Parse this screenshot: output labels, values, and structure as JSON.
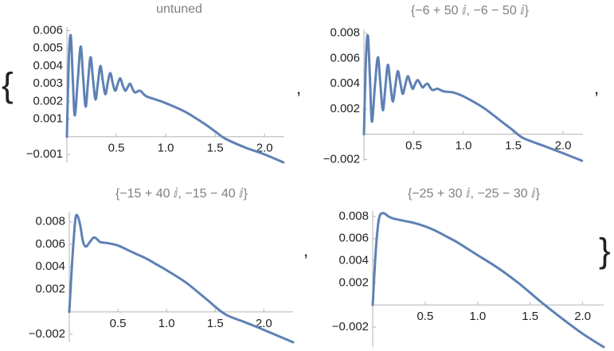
{
  "open_brace": "{",
  "close_brace": "}",
  "separators": [
    ",",
    ",",
    ","
  ],
  "chart_data": [
    {
      "type": "line",
      "title": "untuned",
      "color": "#5e81b5",
      "xlim": [
        0,
        2.2
      ],
      "ylim": [
        -0.00145,
        0.0062
      ],
      "xticks": [
        0.5,
        {
          "value": 1.0,
          "label": "1.0"
        },
        1.5,
        {
          "value": 2.0,
          "label": "2.0"
        }
      ],
      "yticks": [
        {
          "value": -0.001,
          "label": "−0.001"
        },
        0.001,
        0.002,
        0.003,
        0.004,
        0.005,
        0.006
      ],
      "x": [
        0,
        0.02,
        0.04,
        0.06,
        0.08,
        0.11,
        0.14,
        0.165,
        0.19,
        0.215,
        0.24,
        0.265,
        0.29,
        0.315,
        0.34,
        0.365,
        0.39,
        0.415,
        0.44,
        0.465,
        0.49,
        0.515,
        0.54,
        0.565,
        0.59,
        0.615,
        0.64,
        0.665,
        0.69,
        0.74,
        0.8,
        0.9,
        1.0,
        1.2,
        1.4,
        1.5,
        1.6,
        1.8,
        2.0,
        2.19
      ],
      "values": [
        0,
        0.0045,
        0.0057,
        0.0032,
        0.0012,
        0.0032,
        0.0051,
        0.0033,
        0.0017,
        0.0032,
        0.0045,
        0.0032,
        0.0021,
        0.0031,
        0.004,
        0.0031,
        0.0024,
        0.0031,
        0.0036,
        0.003,
        0.0026,
        0.003,
        0.0033,
        0.0029,
        0.0026,
        0.0028,
        0.003,
        0.0027,
        0.0025,
        0.0026,
        0.0023,
        0.0021,
        0.0019,
        0.0014,
        0.0007,
        0.0003,
        -0.0001,
        -0.0006,
        -0.001,
        -0.00145
      ]
    },
    {
      "type": "line",
      "title": "{−6 + 50 ⅈ, −6 − 50 ⅈ}",
      "color": "#5e81b5",
      "xlim": [
        0,
        2.2
      ],
      "ylim": [
        -0.0021,
        0.0083
      ],
      "xticks": [
        0.5,
        {
          "value": 1.0,
          "label": "1.0"
        },
        1.5,
        {
          "value": 2.0,
          "label": "2.0"
        }
      ],
      "yticks": [
        {
          "value": -0.002,
          "label": "−0.002"
        },
        0.002,
        0.004,
        0.006,
        0.008
      ],
      "x": [
        0,
        0.02,
        0.04,
        0.06,
        0.08,
        0.11,
        0.14,
        0.165,
        0.19,
        0.215,
        0.24,
        0.265,
        0.29,
        0.315,
        0.34,
        0.365,
        0.39,
        0.415,
        0.44,
        0.465,
        0.49,
        0.515,
        0.54,
        0.565,
        0.59,
        0.615,
        0.64,
        0.665,
        0.69,
        0.74,
        0.8,
        0.9,
        1.0,
        1.2,
        1.4,
        1.5,
        1.6,
        1.8,
        2.0,
        2.19
      ],
      "values": [
        0,
        0.006,
        0.0078,
        0.0045,
        0.001,
        0.0038,
        0.0061,
        0.004,
        0.0019,
        0.0037,
        0.0055,
        0.004,
        0.0026,
        0.0038,
        0.005,
        0.0041,
        0.0032,
        0.0039,
        0.0046,
        0.0041,
        0.0036,
        0.004,
        0.0043,
        0.004,
        0.0037,
        0.0039,
        0.004,
        0.0037,
        0.0035,
        0.0036,
        0.0034,
        0.0033,
        0.003,
        0.0021,
        0.0009,
        0.0003,
        -0.0003,
        -0.0009,
        -0.0015,
        -0.0021
      ]
    },
    {
      "type": "line",
      "title": "{−15 + 40 ⅈ, −15 − 40 ⅈ}",
      "color": "#5e81b5",
      "xlim": [
        0,
        2.3
      ],
      "ylim": [
        -0.0027,
        0.0089
      ],
      "xticks": [
        0.5,
        {
          "value": 1.0,
          "label": "1.0"
        },
        1.5,
        {
          "value": 2.0,
          "label": "2.0"
        }
      ],
      "yticks": [
        {
          "value": -0.002,
          "label": "−0.002"
        },
        0.002,
        0.004,
        0.006,
        0.008
      ],
      "x": [
        0,
        0.03,
        0.06,
        0.08,
        0.11,
        0.14,
        0.17,
        0.21,
        0.25,
        0.28,
        0.32,
        0.4,
        0.5,
        0.6,
        0.7,
        0.8,
        0.9,
        1.0,
        1.2,
        1.4,
        1.6,
        1.8,
        2.0,
        2.3
      ],
      "values": [
        0,
        0.0045,
        0.008,
        0.0086,
        0.0078,
        0.0063,
        0.0058,
        0.0062,
        0.0066,
        0.0065,
        0.0062,
        0.0061,
        0.0059,
        0.0055,
        0.0051,
        0.0047,
        0.0042,
        0.0037,
        0.0026,
        0.0012,
        -0.0002,
        -0.0009,
        -0.0016,
        -0.0027
      ]
    },
    {
      "type": "line",
      "title": "{−25 + 30 ⅈ, −25 − 30 ⅈ}",
      "color": "#5e81b5",
      "xlim": [
        0,
        2.2
      ],
      "ylim": [
        -0.0038,
        0.0085
      ],
      "xticks": [
        0.5,
        {
          "value": 1.0,
          "label": "1.0"
        },
        1.5,
        {
          "value": 2.0,
          "label": "2.0"
        }
      ],
      "yticks": [
        {
          "value": -0.002,
          "label": "−0.002"
        },
        0.002,
        0.004,
        0.006,
        0.008
      ],
      "x": [
        0,
        0.03,
        0.06,
        0.1,
        0.15,
        0.2,
        0.3,
        0.4,
        0.5,
        0.6,
        0.7,
        0.8,
        0.9,
        1.0,
        1.2,
        1.4,
        1.6,
        1.8,
        2.0,
        2.2
      ],
      "values": [
        0,
        0.005,
        0.0078,
        0.0083,
        0.008,
        0.0078,
        0.0076,
        0.0074,
        0.0071,
        0.0067,
        0.0062,
        0.0057,
        0.0051,
        0.0045,
        0.0033,
        0.0019,
        0.0003,
        -0.0012,
        -0.0026,
        -0.0038
      ]
    }
  ]
}
